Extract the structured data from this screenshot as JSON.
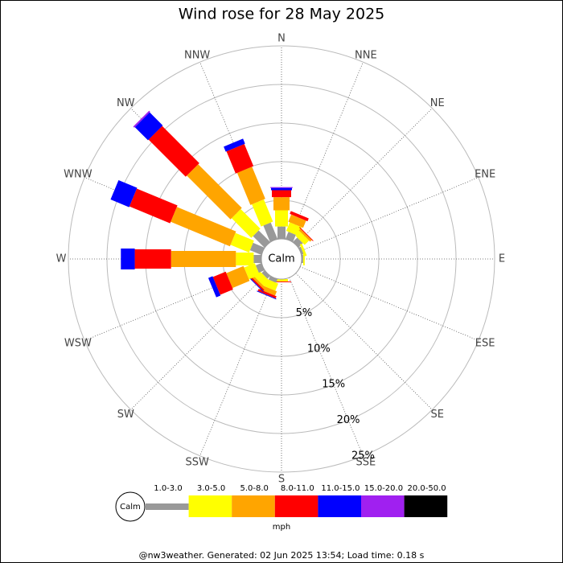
{
  "chart_data": {
    "type": "windrose",
    "title": "Wind rose for 28 May 2025",
    "categories": [
      "N",
      "NNE",
      "NE",
      "ENE",
      "E",
      "ESE",
      "SE",
      "SSE",
      "S",
      "SSW",
      "SW",
      "WSW",
      "W",
      "WNW",
      "NW",
      "NNW"
    ],
    "calm_label": "Calm",
    "rlim": [
      0,
      25
    ],
    "rticks": [
      {
        "value": 5,
        "label": "5%"
      },
      {
        "value": 10,
        "label": "10%"
      },
      {
        "value": 15,
        "label": "15%"
      },
      {
        "value": 20,
        "label": "20%"
      },
      {
        "value": 25,
        "label": "25%"
      }
    ],
    "grid": true,
    "series": [
      {
        "name": "1.0-3.0",
        "color": "#999999",
        "values": [
          1.6,
          1.0,
          0.8,
          0.3,
          0.2,
          0,
          0,
          0,
          0,
          0.5,
          0.5,
          0.8,
          1.0,
          1.6,
          2.1,
          2.3
        ]
      },
      {
        "name": "3.0-5.0",
        "color": "#ffff00",
        "values": [
          2.1,
          1.2,
          0.8,
          0.3,
          0.2,
          0,
          0,
          0,
          0.3,
          1.0,
          1.0,
          1.5,
          2.3,
          2.6,
          3.6,
          3.1
        ]
      },
      {
        "name": "5.0-8.0",
        "color": "#ffa500",
        "values": [
          1.7,
          1.0,
          0.3,
          0,
          0,
          0,
          0,
          0,
          0,
          0.6,
          0.3,
          2.4,
          8.4,
          8.3,
          8.0,
          4.5
        ]
      },
      {
        "name": "8.0-11.0",
        "color": "#ff0000",
        "values": [
          0.9,
          0.4,
          0.1,
          0,
          0,
          0,
          0,
          0,
          0.1,
          0.3,
          0.2,
          1.8,
          4.7,
          5.7,
          6.8,
          3.1
        ]
      },
      {
        "name": "11.0-15.0",
        "color": "#0000ff",
        "values": [
          0.3,
          0,
          0,
          0,
          0,
          0,
          0,
          0,
          0,
          0.1,
          0.1,
          0.6,
          1.8,
          2.6,
          2.4,
          0.7
        ]
      },
      {
        "name": "15.0-20.0",
        "color": "#a020f0",
        "values": [
          0.1,
          0,
          0,
          0,
          0,
          0,
          0,
          0,
          0,
          0,
          0,
          0,
          0,
          0,
          0.2,
          0
        ]
      },
      {
        "name": "20.0-50.0",
        "color": "#000000",
        "values": [
          0,
          0,
          0,
          0,
          0,
          0,
          0,
          0,
          0,
          0,
          0,
          0,
          0,
          0,
          0,
          0
        ]
      }
    ],
    "legend_unit": "mph",
    "footer": "@nw3weather.  Generated: 02 Jun 2025 13:54; Load time: 0.18 s"
  }
}
